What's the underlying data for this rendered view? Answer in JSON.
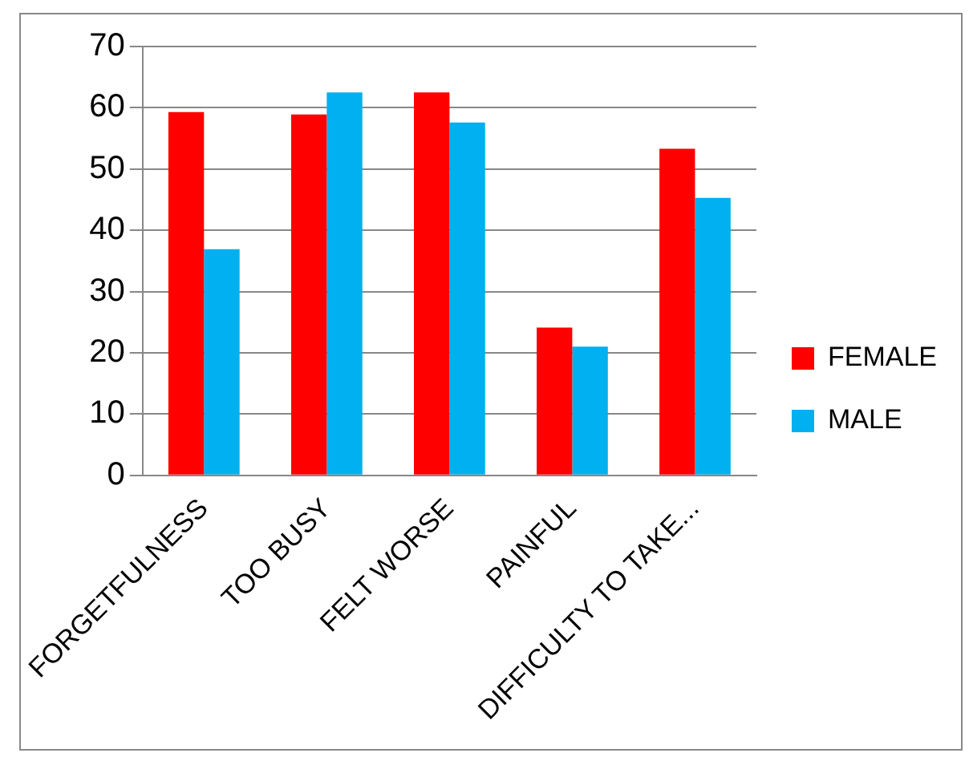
{
  "chart_data": {
    "type": "bar",
    "categories": [
      "FORGETFULNESS",
      "TOO BUSY",
      "FELT WORSE",
      "PAINFUL",
      "DIFFICULTY TO TAKE..."
    ],
    "series": [
      {
        "name": "FEMALE",
        "color": "#ff0000",
        "values": [
          59.3,
          58.9,
          62.5,
          24.1,
          53.3
        ]
      },
      {
        "name": "MALE",
        "color": "#00b0f0",
        "values": [
          36.9,
          62.5,
          57.6,
          21.0,
          45.3
        ]
      }
    ],
    "ylim": [
      0,
      70
    ],
    "yticks": [
      0,
      10,
      20,
      30,
      40,
      50,
      60,
      70
    ],
    "grid": "y",
    "legend": "right"
  }
}
